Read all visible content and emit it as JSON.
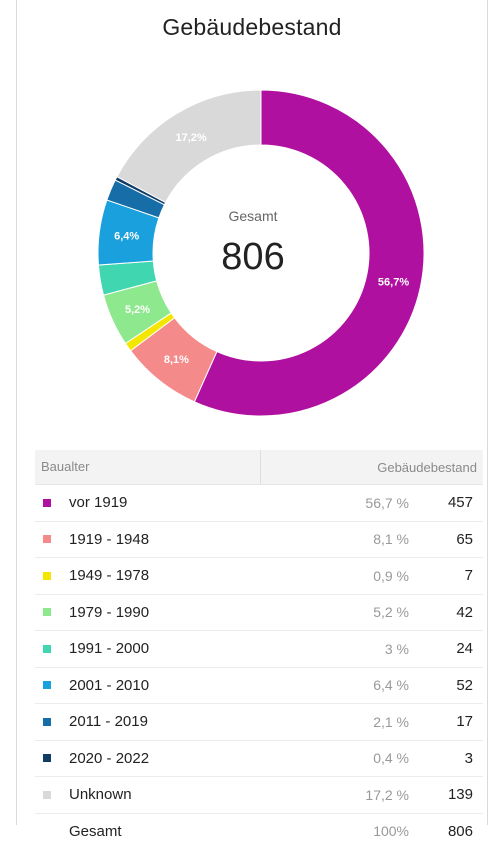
{
  "title": "Gebäudebestand",
  "center": {
    "label": "Gesamt",
    "value": "806"
  },
  "chart_data": {
    "type": "pie",
    "title": "Gebäudebestand",
    "total": 806,
    "categories": [
      "vor 1919",
      "1919 - 1948",
      "1949 - 1978",
      "1979 - 1990",
      "1991 - 2000",
      "2001 - 2010",
      "2011 - 2019",
      "2020 - 2022",
      "Unknown"
    ],
    "values": [
      457,
      65,
      7,
      42,
      24,
      52,
      17,
      3,
      139
    ],
    "percent": [
      56.7,
      8.1,
      0.9,
      5.2,
      3,
      6.4,
      2.1,
      0.4,
      17.2
    ],
    "slice_labels": [
      "56,7%",
      "8,1%",
      "",
      "5,2%",
      "",
      "6,4%",
      "",
      "",
      "17,2%"
    ],
    "colors": [
      "#b0109f",
      "#f58a8a",
      "#f3e600",
      "#8ee88e",
      "#3fd6b0",
      "#1aa0dc",
      "#166da8",
      "#0f3c66",
      "#d9d9d9"
    ]
  },
  "table": {
    "header": {
      "col1": "Baualter",
      "col2": "Gebäudebestand"
    },
    "rows": [
      {
        "label": "vor 1919",
        "pct": "56,7 %",
        "count": "457"
      },
      {
        "label": "1919 - 1948",
        "pct": "8,1 %",
        "count": "65"
      },
      {
        "label": "1949 - 1978",
        "pct": "0,9 %",
        "count": "7"
      },
      {
        "label": "1979 - 1990",
        "pct": "5,2 %",
        "count": "42"
      },
      {
        "label": "1991 - 2000",
        "pct": "3 %",
        "count": "24"
      },
      {
        "label": "2001 - 2010",
        "pct": "6,4 %",
        "count": "52"
      },
      {
        "label": "2011 - 2019",
        "pct": "2,1 %",
        "count": "17"
      },
      {
        "label": "2020 - 2022",
        "pct": "0,4 %",
        "count": "3"
      },
      {
        "label": "Unknown",
        "pct": "17,2 %",
        "count": "139"
      }
    ],
    "total": {
      "label": "Gesamt",
      "pct": "100%",
      "count": "806"
    }
  }
}
